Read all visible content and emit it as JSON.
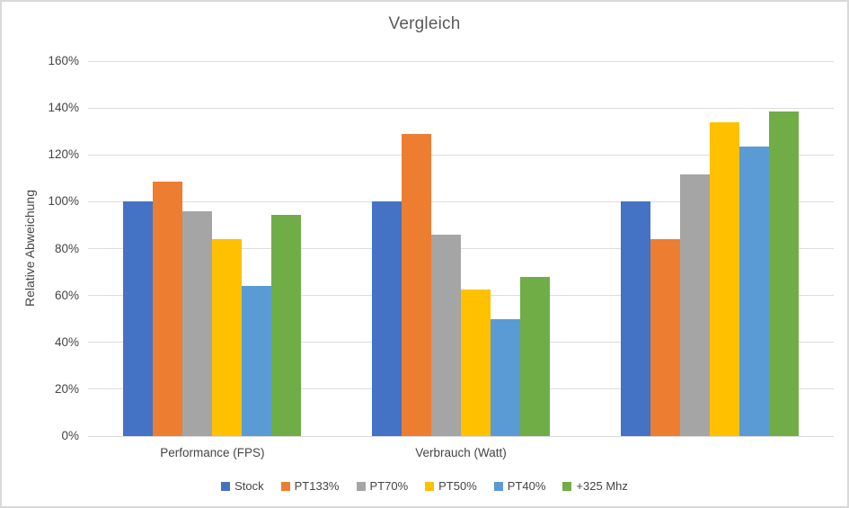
{
  "chart_data": {
    "type": "bar",
    "title": "Vergleich",
    "ylabel": "Relative Abweichung",
    "xlabel": "",
    "categories": [
      "Performance (FPS)",
      "Verbrauch (Watt)",
      ""
    ],
    "series": [
      {
        "name": "Stock",
        "color": "#4472C4",
        "values": [
          100,
          100,
          100
        ]
      },
      {
        "name": "PT133%",
        "color": "#ED7D31",
        "values": [
          108.5,
          129,
          84
        ]
      },
      {
        "name": "PT70%",
        "color": "#A5A5A5",
        "values": [
          96,
          86,
          111.5
        ]
      },
      {
        "name": "PT50%",
        "color": "#FFC000",
        "values": [
          84,
          62.5,
          134
        ]
      },
      {
        "name": "PT40%",
        "color": "#5B9BD5",
        "values": [
          64,
          50,
          123.5
        ]
      },
      {
        "name": "+325 Mhz",
        "color": "#70AD47",
        "values": [
          94.5,
          68,
          138.5
        ]
      }
    ],
    "ylim": [
      0,
      160
    ],
    "ytick_step": 20,
    "ytick_labels": [
      "0%",
      "20%",
      "40%",
      "60%",
      "80%",
      "100%",
      "120%",
      "140%",
      "160%"
    ],
    "grid": "horizontal",
    "legend_position": "bottom",
    "background": "#ffffff",
    "border_color": "#d9d9d9"
  }
}
